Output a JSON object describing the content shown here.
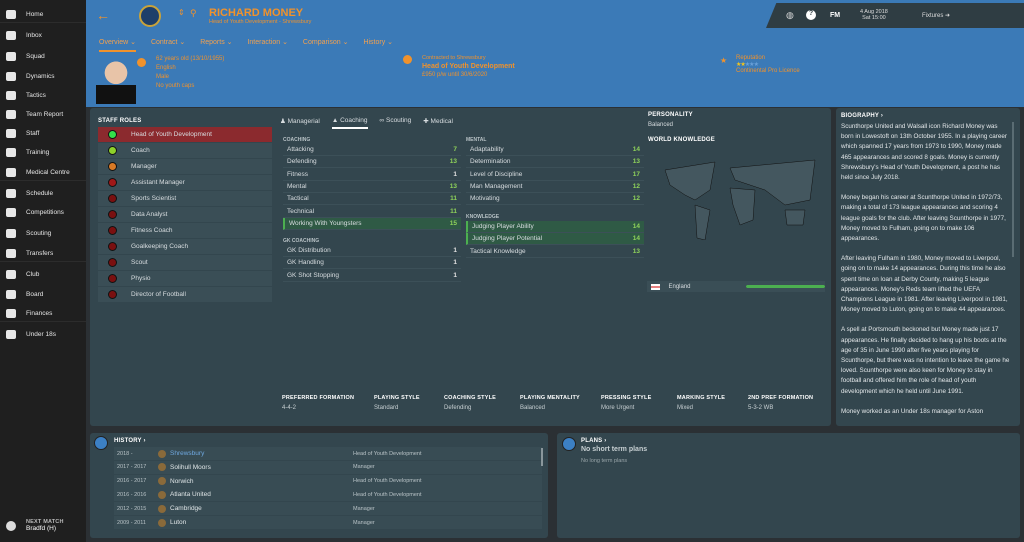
{
  "sidebar": {
    "items": [
      {
        "label": "Home",
        "icon": "home-icon"
      },
      {
        "label": "Inbox",
        "icon": "inbox-icon"
      },
      {
        "label": "Squad",
        "icon": "squad-icon"
      },
      {
        "label": "Dynamics",
        "icon": "dynamics-icon"
      },
      {
        "label": "Tactics",
        "icon": "tactics-icon"
      },
      {
        "label": "Team Report",
        "icon": "clipboard-icon"
      },
      {
        "label": "Staff",
        "icon": "staff-icon"
      },
      {
        "label": "Training",
        "icon": "training-icon"
      },
      {
        "label": "Medical Centre",
        "icon": "medical-icon"
      },
      {
        "label": "Schedule",
        "icon": "calendar-icon"
      },
      {
        "label": "Competitions",
        "icon": "trophy-icon"
      },
      {
        "label": "Scouting",
        "icon": "search-icon"
      },
      {
        "label": "Transfers",
        "icon": "transfers-icon"
      },
      {
        "label": "Club",
        "icon": "shield-icon"
      },
      {
        "label": "Board",
        "icon": "briefcase-icon"
      },
      {
        "label": "Finances",
        "icon": "money-icon"
      },
      {
        "label": "Under 18s",
        "icon": "youth-icon"
      }
    ],
    "next_match_label": "NEXT MATCH",
    "next_match": "Bradfd (H)"
  },
  "header": {
    "name": "RICHARD MONEY",
    "subtitle": "Head of Youth Development - Shrewsbury",
    "tabs": [
      "Overview",
      "Contract",
      "Reports",
      "Interaction",
      "Comparison",
      "History"
    ],
    "age": "62 years old (13/10/1955)",
    "nationality": "English",
    "gender": "Male",
    "caps": "No youth caps",
    "contract_label": "Contracted to Shrewsbury",
    "job": "Head of Youth Development",
    "wage": "£950 p/w until 30/6/2020",
    "reputation_label": "Reputation",
    "reputation_stars": 2,
    "reputation_max": 5,
    "licence": "Continental Pro Licence",
    "fm": "FM",
    "date": "4 Aug 2018",
    "time": "Sat 15:00",
    "fixtures": "Fixtures",
    "accent": "#f0922c",
    "bg": "#3b7ab7"
  },
  "staff_roles": {
    "title": "STAFF ROLES",
    "items": [
      {
        "label": "Head of Youth Development",
        "color": "#33e04a",
        "selected": true
      },
      {
        "label": "Coach",
        "color": "#8ed12a"
      },
      {
        "label": "Manager",
        "color": "#d97a25"
      },
      {
        "label": "Assistant Manager",
        "color": "#a01818"
      },
      {
        "label": "Sports Scientist",
        "color": "#7a1010"
      },
      {
        "label": "Data Analyst",
        "color": "#7a1010"
      },
      {
        "label": "Fitness Coach",
        "color": "#7a1010"
      },
      {
        "label": "Goalkeeping Coach",
        "color": "#7a1010"
      },
      {
        "label": "Scout",
        "color": "#7a1010"
      },
      {
        "label": "Physio",
        "color": "#7a1010"
      },
      {
        "label": "Director of Football",
        "color": "#7a1010"
      }
    ]
  },
  "attr_tabs": [
    "Managerial",
    "Coaching",
    "Scouting",
    "Medical"
  ],
  "coaching": {
    "title": "COACHING",
    "items": [
      [
        "Attacking",
        "7"
      ],
      [
        "Defending",
        "13"
      ],
      [
        "Fitness",
        "1"
      ],
      [
        "Mental",
        "13"
      ],
      [
        "Tactical",
        "11"
      ],
      [
        "Technical",
        "11"
      ],
      [
        "Working With Youngsters",
        "15"
      ]
    ]
  },
  "gk": {
    "title": "GK COACHING",
    "items": [
      [
        "GK Distribution",
        "1"
      ],
      [
        "GK Handling",
        "1"
      ],
      [
        "GK Shot Stopping",
        "1"
      ]
    ]
  },
  "mental": {
    "title": "MENTAL",
    "items": [
      [
        "Adaptability",
        "14"
      ],
      [
        "Determination",
        "13"
      ],
      [
        "Level of Discipline",
        "17"
      ],
      [
        "Man Management",
        "12"
      ],
      [
        "Motivating",
        "12"
      ]
    ]
  },
  "knowledge": {
    "title": "KNOWLEDGE",
    "items": [
      [
        "Judging Player Ability",
        "14"
      ],
      [
        "Judging Player Potential",
        "14"
      ],
      [
        "Tactical Knowledge",
        "13"
      ]
    ]
  },
  "personality": {
    "label": "PERSONALITY",
    "value": "Balanced"
  },
  "world": {
    "label": "WORLD KNOWLEDGE",
    "country": "England",
    "level": 1.0
  },
  "styles": [
    [
      "PREFERRED FORMATION",
      "4-4-2"
    ],
    [
      "PLAYING STYLE",
      "Standard"
    ],
    [
      "COACHING STYLE",
      "Defending"
    ],
    [
      "PLAYING MENTALITY",
      "Balanced"
    ],
    [
      "PRESSING STYLE",
      "More Urgent"
    ],
    [
      "MARKING STYLE",
      "Mixed"
    ],
    [
      "2ND PREF FORMATION",
      "5-3-2 WB"
    ]
  ],
  "biography": {
    "title": "BIOGRAPHY ›",
    "paragraphs": [
      "Scunthorpe United and Walsall icon Richard Money was born in Lowestoft on 13th October 1955. In a playing career which spanned 17 years from 1973 to 1990, Money made 465 appearances and scored 8 goals. Money is currently Shrewsbury's Head of Youth Development, a post he has held since July 2018.",
      "Money began his career at Scunthorpe United in 1972/73, making a total of 173 league appearances and scoring 4 league goals for the club. After leaving Scunthorpe in 1977, Money moved to Fulham, going on to make 106 appearances.",
      "After leaving Fulham in 1980, Money moved to Liverpool, going on to make 14 appearances. During this time he also spent time on loan at Derby County, making 5 league appearances. Money's Reds team lifted the UEFA Champions League in 1981. After leaving Liverpool in 1981, Money moved to Luton, going on to make 44 appearances.",
      "A spell at Portsmouth beckoned but Money made just 17 appearances. He finally decided to hang up his boots at the age of 35 in June 1990 after five years playing for Scunthorpe, but there was no intention to leave the game he loved. Scunthorpe were also keen for Money to stay in football and offered him the role of head of youth development which he held until June 1991.",
      "Money worked as an Under 18s manager for Aston"
    ]
  },
  "history": {
    "title": "HISTORY ›",
    "rows": [
      [
        "2018 -",
        "Shrewsbury",
        "Head of Youth Development"
      ],
      [
        "2017 - 2017",
        "Solihull Moors",
        "Manager"
      ],
      [
        "2016 - 2017",
        "Norwich",
        "Head of Youth Development"
      ],
      [
        "2016 - 2016",
        "Atlanta United",
        "Head of Youth Development"
      ],
      [
        "2012 - 2015",
        "Cambridge",
        "Manager"
      ],
      [
        "2009 - 2011",
        "Luton",
        "Manager"
      ]
    ]
  },
  "plans": {
    "title": "PLANS ›",
    "short": "No short term plans",
    "long": "No long term plans"
  }
}
